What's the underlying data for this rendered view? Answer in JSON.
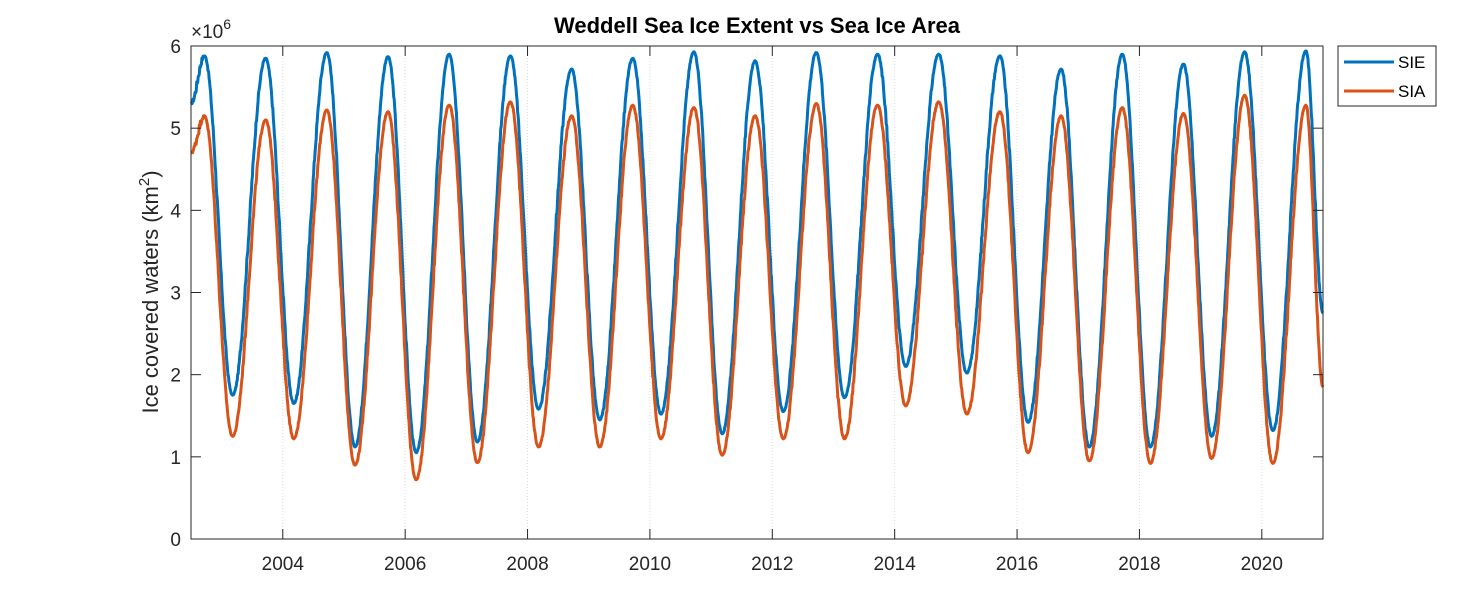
{
  "chart_data": {
    "type": "line",
    "title": "Weddell Sea Ice Extent vs Sea Ice Area",
    "ylabel_main": "Ice covered waters (km",
    "ylabel_sup": "2",
    "ylabel_close": ")",
    "y_exponent_base": "×10",
    "y_exponent_power": "6",
    "xlim": [
      2002.5,
      2021.0
    ],
    "ylim": [
      0,
      6
    ],
    "x_ticks": [
      2004,
      2006,
      2008,
      2010,
      2012,
      2014,
      2016,
      2018,
      2020
    ],
    "x_tick_labels": [
      "2004",
      "2006",
      "2008",
      "2010",
      "2012",
      "2014",
      "2016",
      "2018",
      "2020"
    ],
    "y_ticks": [
      0,
      1,
      2,
      3,
      4,
      5,
      6
    ],
    "y_tick_labels": [
      "0",
      "1",
      "2",
      "3",
      "4",
      "5",
      "6"
    ],
    "x_grid": true,
    "legend_position": "outside-top-right",
    "colors": {
      "SIE": "#0072BD",
      "SIA": "#D95319"
    },
    "seasonal_peak_offset": 0.72,
    "seasonal_trough_offset": 0.18,
    "series": [
      {
        "name": "SIE",
        "start_value": 5.3,
        "end_value": 2.75,
        "annual_max": [
          5.88,
          5.85,
          5.92,
          5.87,
          5.9,
          5.88,
          5.72,
          5.85,
          5.93,
          5.82,
          5.92,
          5.9,
          5.9,
          5.88,
          5.72,
          5.9,
          5.78,
          5.93,
          5.94
        ],
        "annual_min": [
          1.75,
          1.65,
          1.12,
          1.05,
          1.18,
          1.58,
          1.45,
          1.52,
          1.28,
          1.55,
          1.72,
          2.1,
          2.02,
          1.42,
          1.12,
          1.12,
          1.25,
          1.32
        ]
      },
      {
        "name": "SIA",
        "start_value": 4.7,
        "end_value": 1.85,
        "annual_max": [
          5.15,
          5.1,
          5.22,
          5.2,
          5.28,
          5.32,
          5.15,
          5.28,
          5.25,
          5.15,
          5.3,
          5.28,
          5.32,
          5.2,
          5.15,
          5.25,
          5.18,
          5.4,
          5.28
        ],
        "annual_min": [
          1.25,
          1.22,
          0.9,
          0.72,
          0.93,
          1.12,
          1.12,
          1.22,
          1.02,
          1.22,
          1.22,
          1.62,
          1.52,
          1.05,
          0.95,
          0.92,
          0.98,
          0.92
        ]
      }
    ]
  }
}
